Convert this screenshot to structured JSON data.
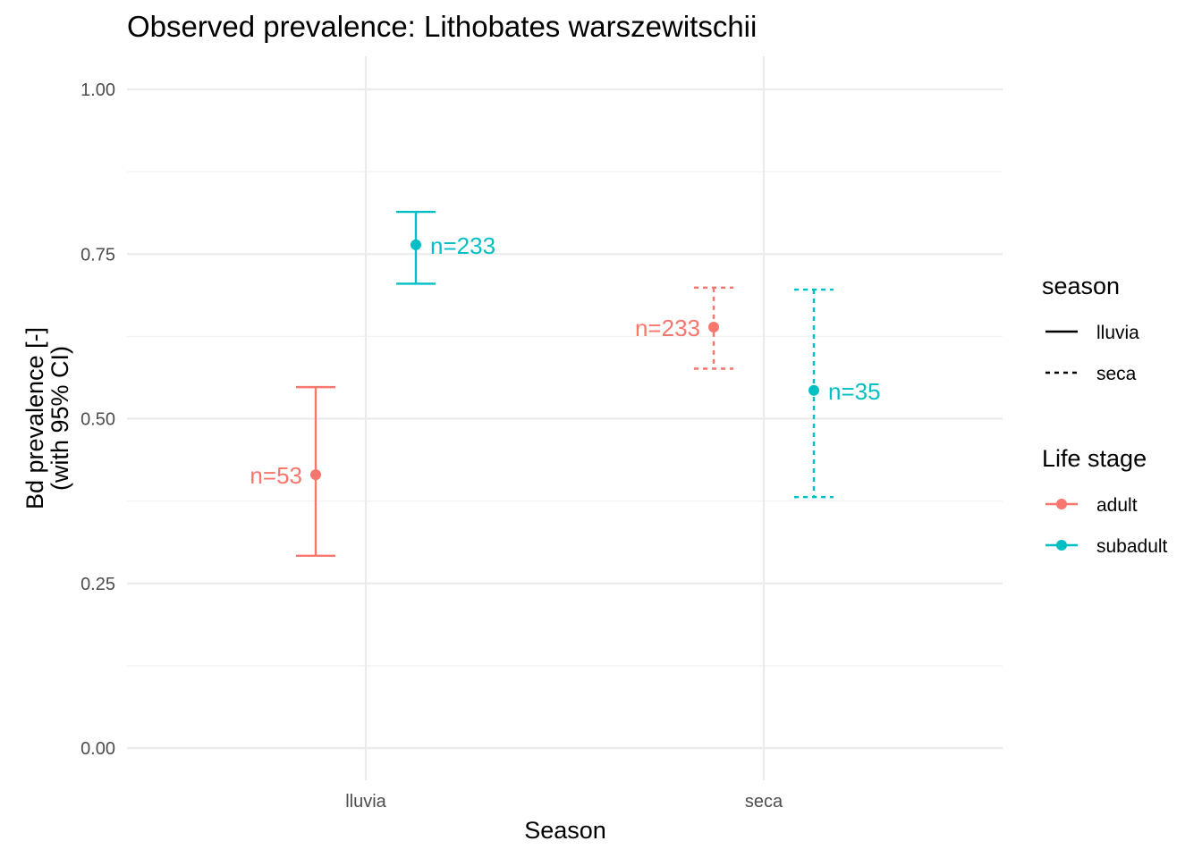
{
  "chart_data": {
    "type": "errorbar-point",
    "title": "Observed prevalence: Lithobates warszewitschii",
    "xlabel": "Season",
    "ylabel_lines": [
      "Bd prevalence [-]",
      "(with 95% CI)"
    ],
    "ylim": [
      0,
      1
    ],
    "yticks": [
      0,
      0.25,
      0.5,
      0.75,
      1.0
    ],
    "ytick_labels": [
      "0.00",
      "0.25",
      "0.50",
      "0.75",
      "1.00"
    ],
    "categories": [
      "lluvia",
      "seca"
    ],
    "grid": true,
    "series": [
      {
        "name": "adult",
        "color": "#F8766D",
        "points": [
          {
            "season": "lluvia",
            "value": 0.415,
            "lower": 0.292,
            "upper": 0.548,
            "label": "n=53"
          },
          {
            "season": "seca",
            "value": 0.639,
            "lower": 0.576,
            "upper": 0.699,
            "label": "n=233"
          }
        ]
      },
      {
        "name": "subadult",
        "color": "#00BFC4",
        "points": [
          {
            "season": "lluvia",
            "value": 0.764,
            "lower": 0.705,
            "upper": 0.814,
            "label": "n=233"
          },
          {
            "season": "seca",
            "value": 0.543,
            "lower": 0.381,
            "upper": 0.696,
            "label": "n=35"
          }
        ]
      }
    ],
    "legend": {
      "placement": "right",
      "linetype": {
        "title": "season",
        "items": [
          {
            "label": "lluvia",
            "dash": "solid"
          },
          {
            "label": "seca",
            "dash": "dashed"
          }
        ]
      },
      "color": {
        "title": "Life stage",
        "items": [
          {
            "label": "adult",
            "color": "#F8766D"
          },
          {
            "label": "subadult",
            "color": "#00BFC4"
          }
        ]
      }
    }
  }
}
